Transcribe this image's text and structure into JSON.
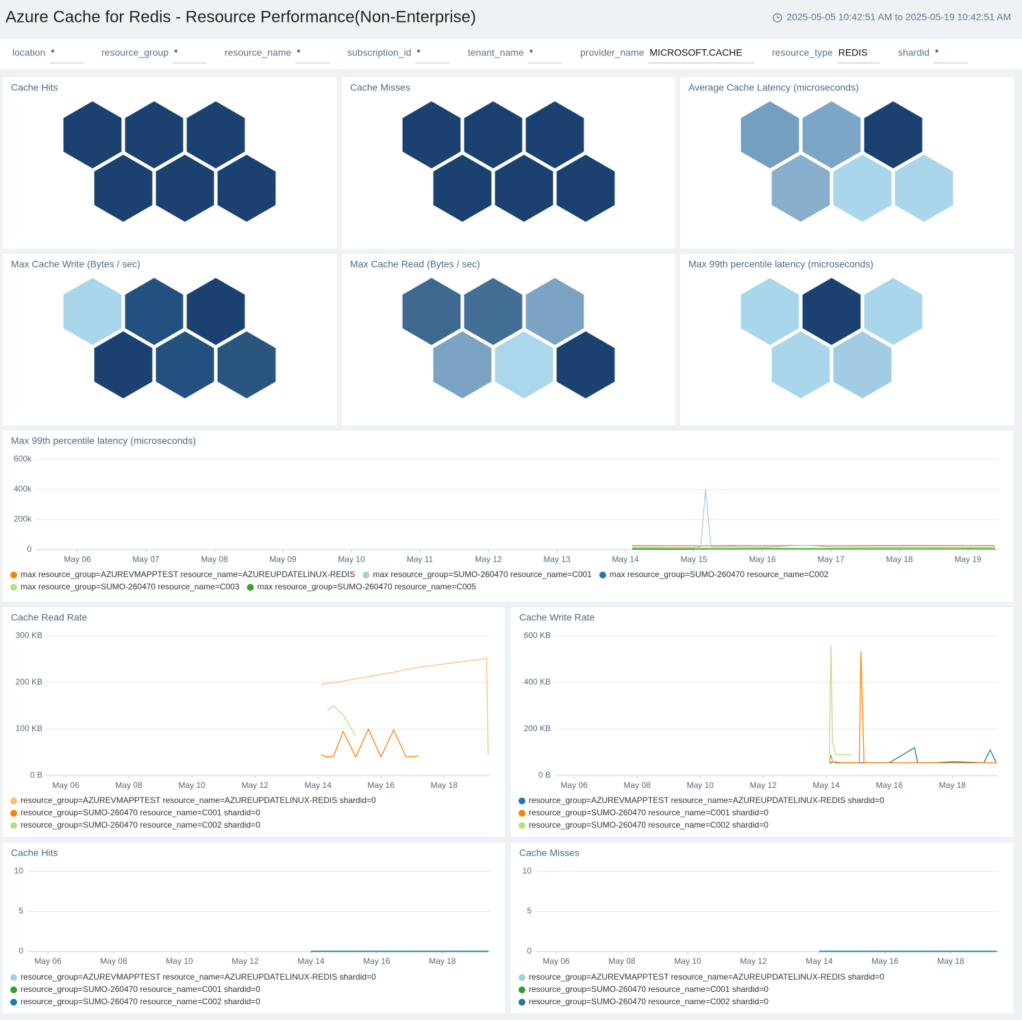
{
  "header": {
    "title": "Azure Cache for Redis - Resource Performance(Non-Enterprise)",
    "time_range": "2025-05-05 10:42:51 AM to 2025-05-19 10:42:51 AM"
  },
  "filters": [
    {
      "label": "location",
      "value": "*"
    },
    {
      "label": "resource_group",
      "value": "*"
    },
    {
      "label": "resource_name",
      "value": "*"
    },
    {
      "label": "subscription_id",
      "value": "*"
    },
    {
      "label": "tenant_name",
      "value": "*"
    },
    {
      "label": "provider_name",
      "value": "MICROSOFT.CACHE"
    },
    {
      "label": "resource_type",
      "value": "REDIS"
    },
    {
      "label": "shardid",
      "value": "*"
    }
  ],
  "honeycombs": [
    {
      "type": "honeycomb",
      "title": "Cache Hits",
      "colors": [
        "#1a4170",
        "#1a4170",
        "#1a4170",
        "#1a4170",
        "#1a4170",
        "#1a4170"
      ]
    },
    {
      "type": "honeycomb",
      "title": "Cache Misses",
      "colors": [
        "#1a4170",
        "#1a4170",
        "#1a4170",
        "#1a4170",
        "#1a4170",
        "#1a4170"
      ]
    },
    {
      "type": "honeycomb",
      "title": "Average Cache Latency (microseconds)",
      "colors": [
        "#749fc1",
        "#7ca6c6",
        "#1a4170",
        "#88b0cc",
        "#a9d6ea",
        "#a9d6ea"
      ]
    },
    {
      "type": "honeycomb",
      "title": "Max Cache Write (Bytes / sec)",
      "colors": [
        "#a9d6ea",
        "#24507f",
        "#1a4170",
        "#1a4170",
        "#24507f",
        "#29557f"
      ]
    },
    {
      "type": "honeycomb",
      "title": "Max Cache Read (Bytes / sec)",
      "colors": [
        "#3f6890",
        "#436e95",
        "#7ba3c4",
        "#7ba3c4",
        "#aad7eb",
        "#1a4170"
      ]
    },
    {
      "type": "honeycomb",
      "title": "Max 99th percentile latency (microseconds)",
      "colors": [
        "#a9d6ea",
        "#1a4170",
        "#a9d6ea",
        "#a9d6ea",
        "#a1cce3"
      ]
    }
  ],
  "charts": [
    {
      "type": "line",
      "title": "Max 99th percentile latency (microseconds)",
      "x": [
        14.1,
        14.5,
        15.0,
        15.1,
        15.17,
        15.25,
        15.5,
        16.0,
        16.6,
        17.0,
        18.0,
        19.0,
        19.4
      ],
      "xlim": [
        5.39,
        19.45
      ],
      "xticks": [
        {
          "value": 6,
          "label": "May 06"
        },
        {
          "value": 7,
          "label": "May 07"
        },
        {
          "value": 8,
          "label": "May 08"
        },
        {
          "value": 9,
          "label": "May 09"
        },
        {
          "value": 10,
          "label": "May 10"
        },
        {
          "value": 11,
          "label": "May 11"
        },
        {
          "value": 12,
          "label": "May 12"
        },
        {
          "value": 13,
          "label": "May 13"
        },
        {
          "value": 14,
          "label": "May 14"
        },
        {
          "value": 15,
          "label": "May 15"
        },
        {
          "value": 16,
          "label": "May 16"
        },
        {
          "value": 17,
          "label": "May 17"
        },
        {
          "value": 18,
          "label": "May 18"
        },
        {
          "value": 19,
          "label": "May 19"
        }
      ],
      "ylim": [
        0,
        600000
      ],
      "yticks": [
        0,
        {
          "value": 200000,
          "label": "200k"
        },
        {
          "value": 400000,
          "label": "400k"
        },
        {
          "value": 600000,
          "label": "600k"
        }
      ],
      "series": [
        {
          "name": "max resource_group=AZUREVMAPPTEST resource_name=AZUREUPDATELINUX-REDIS",
          "color": "#ff7f0e",
          "values": [
            28000,
            26000,
            27000,
            25000,
            27000,
            26000,
            28000,
            27000,
            29000,
            27000,
            28000,
            27000,
            28000
          ]
        },
        {
          "name": "max resource_group=SUMO-260470 resource_name=C001",
          "color": "#a6cee3",
          "values": [
            18000,
            15000,
            16000,
            20000,
            400000,
            18000,
            20000,
            17000,
            30000,
            18000,
            17000,
            16000,
            17000
          ]
        },
        {
          "name": "max resource_group=SUMO-260470 resource_name=C002",
          "color": "#1f78b4",
          "values": [
            4000,
            3000,
            3000,
            null,
            null,
            null,
            null,
            null,
            null,
            null,
            null,
            null,
            null
          ]
        },
        {
          "name": "max resource_group=SUMO-260470 resource_name=C003",
          "color": "#b2df8a",
          "values": [
            12000,
            10000,
            11000,
            10000,
            12000,
            11000,
            10000,
            12000,
            11000,
            10000,
            11000,
            12000,
            11000
          ]
        },
        {
          "name": "max resource_group=SUMO-260470 resource_name=C005",
          "color": "#33a02c",
          "values": [
            6000,
            5000,
            5000,
            5000,
            6000,
            5000,
            5000,
            6000,
            5000,
            5000,
            5000,
            6000,
            5000
          ]
        }
      ]
    },
    {
      "type": "line",
      "title": "Cache Read Rate",
      "x": [
        14.1,
        14.3,
        14.5,
        14.8,
        15.2,
        15.6,
        16.0,
        16.4,
        16.8,
        17.2,
        17.6,
        18.0,
        18.4,
        18.8,
        19.2,
        19.35,
        19.4
      ],
      "xlim": [
        5.39,
        19.45
      ],
      "xticks": [
        {
          "value": 6,
          "label": "May 06"
        },
        {
          "value": 8,
          "label": "May 08"
        },
        {
          "value": 10,
          "label": "May 10"
        },
        {
          "value": 12,
          "label": "May 12"
        },
        {
          "value": 14,
          "label": "May 14"
        },
        {
          "value": 16,
          "label": "May 16"
        },
        {
          "value": 18,
          "label": "May 18"
        }
      ],
      "ylim": [
        0,
        300000
      ],
      "yticks": [
        {
          "value": 0,
          "label": "0 B"
        },
        {
          "value": 100000,
          "label": "100 KB"
        },
        {
          "value": 200000,
          "label": "200 KB"
        },
        {
          "value": 300000,
          "label": "300 KB"
        }
      ],
      "series": [
        {
          "name": "resource_group=AZUREVMAPPTEST resource_name=AZUREUPDATELINUX-REDIS shardid=0",
          "color": "#fdbf6f",
          "values": [
            195000,
            198000,
            200000,
            203000,
            208000,
            212000,
            218000,
            222000,
            228000,
            233000,
            236000,
            240000,
            243000,
            247000,
            250000,
            252000,
            45000
          ]
        },
        {
          "name": "resource_group=SUMO-260470 resource_name=C001 shardid=0",
          "color": "#ff7f00",
          "values": [
            45000,
            40000,
            42000,
            95000,
            40000,
            100000,
            40000,
            98000,
            40000,
            42000,
            null,
            null,
            null,
            null,
            null,
            null,
            null
          ]
        },
        {
          "name": "resource_group=SUMO-260470 resource_name=C002 shardid=0",
          "color": "#b2df8a",
          "values": [
            null,
            140000,
            150000,
            130000,
            85000,
            null,
            null,
            null,
            null,
            null,
            null,
            null,
            null,
            null,
            null,
            null,
            null
          ]
        }
      ]
    },
    {
      "type": "line",
      "title": "Cache Write Rate",
      "x": [
        14.1,
        14.15,
        14.2,
        14.3,
        14.5,
        14.8,
        15.05,
        15.1,
        15.2,
        15.6,
        16.0,
        16.8,
        16.9,
        17.5,
        18.0,
        19.0,
        19.2,
        19.4
      ],
      "xlim": [
        5.39,
        19.45
      ],
      "xticks": [
        {
          "value": 6,
          "label": "May 06"
        },
        {
          "value": 8,
          "label": "May 08"
        },
        {
          "value": 10,
          "label": "May 10"
        },
        {
          "value": 12,
          "label": "May 12"
        },
        {
          "value": 14,
          "label": "May 14"
        },
        {
          "value": 16,
          "label": "May 16"
        },
        {
          "value": 18,
          "label": "May 18"
        }
      ],
      "ylim": [
        0,
        600000
      ],
      "yticks": [
        {
          "value": 0,
          "label": "0 B"
        },
        {
          "value": 200000,
          "label": "200 KB"
        },
        {
          "value": 400000,
          "label": "400 KB"
        },
        {
          "value": 600000,
          "label": "600 KB"
        }
      ],
      "series": [
        {
          "name": "resource_group=AZUREVMAPPTEST resource_name=AZUREUPDATELINUX-REDIS shardid=0",
          "color": "#1f78b4",
          "values": [
            55000,
            55000,
            60000,
            55000,
            55000,
            55000,
            55000,
            55000,
            55000,
            55000,
            55000,
            120000,
            55000,
            55000,
            60000,
            55000,
            110000,
            55000
          ]
        },
        {
          "name": "resource_group=SUMO-260470 resource_name=C001 shardid=0",
          "color": "#ff7f00",
          "values": [
            60000,
            90000,
            60000,
            58000,
            55000,
            55000,
            55000,
            535000,
            55000,
            55000,
            55000,
            55000,
            55000,
            55000,
            55000,
            55000,
            55000,
            55000
          ]
        },
        {
          "name": "resource_group=SUMO-260470 resource_name=C002 shardid=0",
          "color": "#b2df8a",
          "values": [
            80000,
            560000,
            150000,
            90000,
            90000,
            90000,
            null,
            null,
            null,
            null,
            null,
            null,
            null,
            null,
            null,
            null,
            null,
            null
          ]
        }
      ]
    },
    {
      "type": "line",
      "title": "Cache Hits",
      "x": [
        14.0,
        15.0,
        16.0,
        17.0,
        18.0,
        19.0,
        19.4
      ],
      "xlim": [
        5.375,
        19.46
      ],
      "xticks": [
        {
          "value": 6,
          "label": "May 06"
        },
        {
          "value": 8,
          "label": "May 08"
        },
        {
          "value": 10,
          "label": "May 10"
        },
        {
          "value": 12,
          "label": "May 12"
        },
        {
          "value": 14,
          "label": "May 14"
        },
        {
          "value": 16,
          "label": "May 16"
        },
        {
          "value": 18,
          "label": "May 18"
        }
      ],
      "ylim": [
        0,
        10
      ],
      "yticks": [
        0,
        5,
        10
      ],
      "series": [
        {
          "name": "resource_group=AZUREVMAPPTEST resource_name=AZUREUPDATELINUX-REDIS shardid=0",
          "color": "#a6cee3",
          "values": [
            0.1,
            0.1,
            0.1,
            0.1,
            0.1,
            0.1,
            0.1
          ]
        },
        {
          "name": "resource_group=SUMO-260470 resource_name=C001 shardid=0",
          "color": "#33a02c",
          "values": [
            0,
            0,
            0,
            0,
            0,
            0,
            0
          ]
        },
        {
          "name": "resource_group=SUMO-260470 resource_name=C002 shardid=0",
          "color": "#1f78b4",
          "values": [
            0,
            0,
            0,
            0,
            0,
            0,
            0
          ]
        }
      ]
    },
    {
      "type": "line",
      "title": "Cache Misses",
      "x": [
        14.0,
        15.0,
        16.0,
        17.0,
        18.0,
        19.0,
        19.4
      ],
      "xlim": [
        5.375,
        19.46
      ],
      "xticks": [
        {
          "value": 6,
          "label": "May 06"
        },
        {
          "value": 8,
          "label": "May 08"
        },
        {
          "value": 10,
          "label": "May 10"
        },
        {
          "value": 12,
          "label": "May 12"
        },
        {
          "value": 14,
          "label": "May 14"
        },
        {
          "value": 16,
          "label": "May 16"
        },
        {
          "value": 18,
          "label": "May 18"
        }
      ],
      "ylim": [
        0,
        10
      ],
      "yticks": [
        0,
        5,
        10
      ],
      "series": [
        {
          "name": "resource_group=AZUREVMAPPTEST resource_name=AZUREUPDATELINUX-REDIS shardid=0",
          "color": "#a6cee3",
          "values": [
            0.1,
            0.1,
            0.1,
            0.1,
            0.1,
            0.1,
            0.1
          ]
        },
        {
          "name": "resource_group=SUMO-260470 resource_name=C001 shardid=0",
          "color": "#33a02c",
          "values": [
            0,
            0,
            0,
            0,
            0,
            0,
            0
          ]
        },
        {
          "name": "resource_group=SUMO-260470 resource_name=C002 shardid=0",
          "color": "#1f78b4",
          "values": [
            0,
            0,
            0,
            0,
            0,
            0,
            0
          ]
        }
      ]
    }
  ]
}
